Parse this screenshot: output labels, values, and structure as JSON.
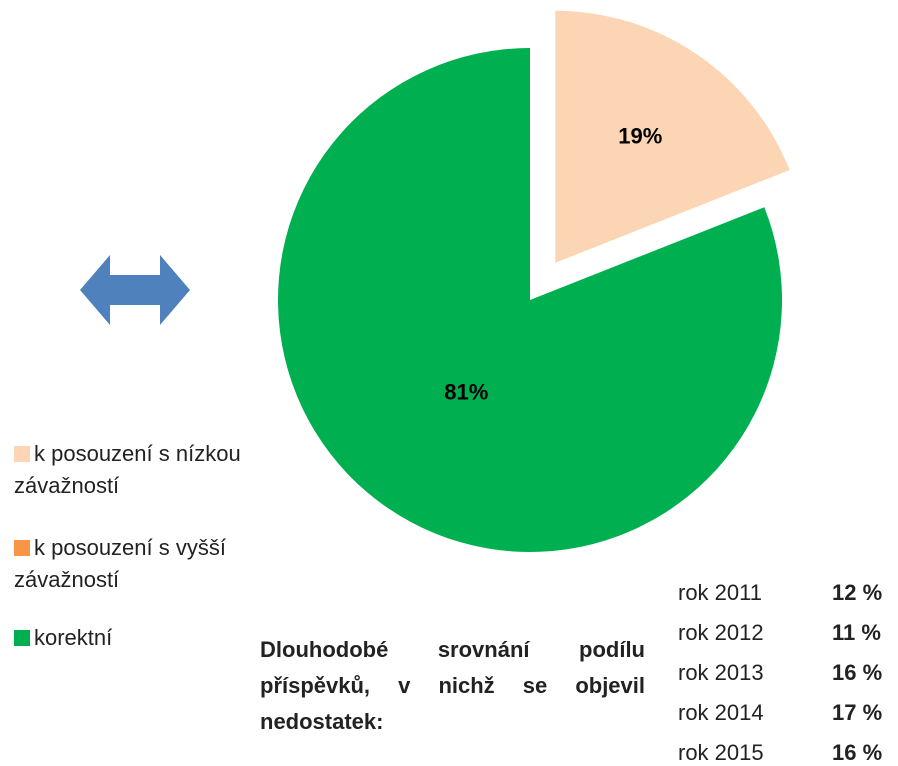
{
  "chart_data": {
    "type": "pie",
    "categories": [
      "k posouzení s nízkou závažností",
      "k posouzení s vyšší závažností",
      "korektní"
    ],
    "values": [
      19,
      0,
      81
    ],
    "value_labels": [
      "19%",
      null,
      "81%"
    ],
    "colors": [
      "#fcd5b4",
      "#f79646",
      "#00b050"
    ],
    "exploded": [
      true,
      false,
      false
    ],
    "legend": "left"
  },
  "comparison": {
    "title": "Dlouhodobé srovnání podílu příspěvků, v nichž se objevil nedostatek:",
    "rows": [
      [
        "rok 2011",
        "12 %"
      ],
      [
        "rok 2012",
        "11 %"
      ],
      [
        "rok 2013",
        "16 %"
      ],
      [
        "rok 2014",
        "17 %"
      ],
      [
        "rok 2015",
        "16 %"
      ]
    ]
  }
}
